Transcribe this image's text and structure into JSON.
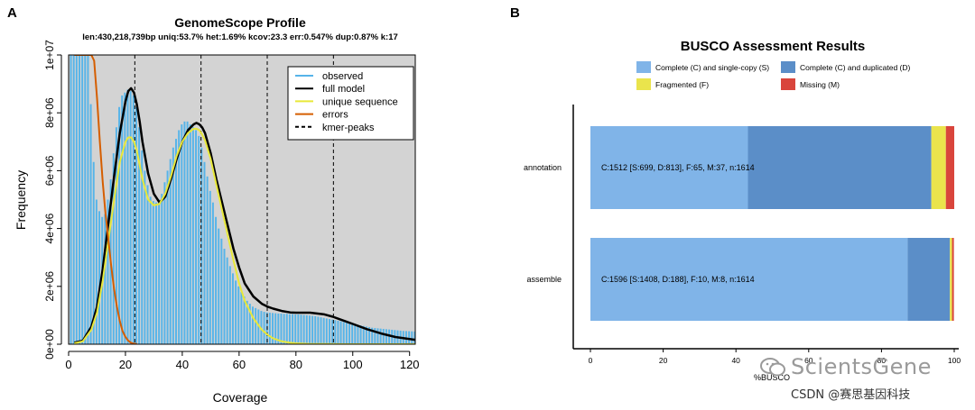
{
  "panels": {
    "a_letter": "A",
    "b_letter": "B"
  },
  "chart_data": [
    {
      "type": "line",
      "title": "GenomeScope Profile",
      "subtitle": "len:430,218,739bp uniq:53.7% het:1.69% kcov:23.3 err:0.547% dup:0.87% k:17",
      "xlabel": "Coverage",
      "ylabel": "Frequency",
      "xlim": [
        0,
        122
      ],
      "ylim": [
        0,
        10000000
      ],
      "x_ticks": [
        0,
        20,
        40,
        60,
        80,
        100,
        120
      ],
      "y_tick_values": [
        0,
        2000000,
        4000000,
        6000000,
        8000000,
        10000000
      ],
      "y_ticks": [
        "0e+00",
        "2e+06",
        "4e+06",
        "6e+06",
        "8e+06",
        "1e+07"
      ],
      "legend_position": "top-right",
      "background": "#d3d3d3",
      "kmer_peaks": [
        23.3,
        46.6,
        69.9,
        93.2
      ],
      "series": [
        {
          "name": "observed",
          "color": "#56b4e9",
          "style": "bars",
          "x": [
            1,
            2,
            3,
            4,
            5,
            6,
            7,
            8,
            9,
            10,
            11,
            12,
            13,
            14,
            15,
            16,
            17,
            18,
            19,
            20,
            21,
            22,
            23,
            24,
            25,
            26,
            27,
            28,
            29,
            30,
            31,
            32,
            33,
            34,
            35,
            36,
            37,
            38,
            39,
            40,
            41,
            42,
            43,
            44,
            45,
            46,
            47,
            48,
            49,
            50,
            51,
            52,
            53,
            54,
            55,
            56,
            57,
            58,
            59,
            60,
            61,
            62,
            63,
            64,
            65,
            66,
            67,
            68,
            69,
            70,
            71,
            72,
            73,
            74,
            75,
            76,
            77,
            78,
            79,
            80,
            81,
            82,
            83,
            84,
            85,
            86,
            87,
            88,
            89,
            90,
            91,
            92,
            93,
            94,
            95,
            96,
            97,
            98,
            99,
            100,
            101,
            102,
            103,
            104,
            105,
            106,
            107,
            108,
            109,
            110,
            111,
            112,
            113,
            114,
            115,
            116,
            117,
            118,
            119,
            120,
            121,
            122
          ],
          "values": [
            10000000,
            10000000,
            10000000,
            10000000,
            10000000,
            10000000,
            10000000,
            8300000,
            6300000,
            5000000,
            4600000,
            4400000,
            4500000,
            5000000,
            5700000,
            6600000,
            7500000,
            8200000,
            8600000,
            8700000,
            8800000,
            8750000,
            8600000,
            8200000,
            7500000,
            6700000,
            6000000,
            5500000,
            5100000,
            4950000,
            4900000,
            5000000,
            5200000,
            5600000,
            6000000,
            6400000,
            6800000,
            7100000,
            7400000,
            7600000,
            7700000,
            7700000,
            7600000,
            7500000,
            7400000,
            7200000,
            6800000,
            6300000,
            5800000,
            5300000,
            4900000,
            4400000,
            4000000,
            3650000,
            3300000,
            3000000,
            2700000,
            2450000,
            2200000,
            2000000,
            1800000,
            1650000,
            1500000,
            1400000,
            1300000,
            1250000,
            1200000,
            1150000,
            1120000,
            1100000,
            1090000,
            1080000,
            1070000,
            1060000,
            1060000,
            1050000,
            1050000,
            1040000,
            1040000,
            1030000,
            1030000,
            1020000,
            1010000,
            1000000,
            990000,
            980000,
            970000,
            950000,
            930000,
            910000,
            890000,
            870000,
            850000,
            830000,
            810000,
            790000,
            770000,
            750000,
            730000,
            710000,
            690000,
            670000,
            650000,
            630000,
            610000,
            590000,
            570000,
            560000,
            550000,
            540000,
            530000,
            520000,
            510000,
            500000,
            490000,
            480000,
            470000,
            460000,
            455000,
            450000,
            445000,
            440000
          ]
        },
        {
          "name": "full model",
          "color": "#000000",
          "x": [
            2,
            5,
            8,
            10,
            12,
            14,
            16,
            18,
            20,
            21,
            22,
            23,
            24,
            25,
            26,
            28,
            30,
            32,
            34,
            36,
            38,
            40,
            42,
            44,
            45,
            46,
            47,
            48,
            50,
            52,
            55,
            58,
            60,
            62,
            65,
            68,
            70,
            72,
            75,
            78,
            80,
            85,
            90,
            93,
            95,
            100,
            105,
            110,
            115,
            120,
            122
          ],
          "values": [
            50000,
            120000,
            600000,
            1300000,
            2600000,
            4200000,
            5800000,
            7300000,
            8400000,
            8750000,
            8850000,
            8700000,
            8300000,
            7700000,
            7000000,
            5900000,
            5200000,
            4900000,
            5100000,
            5700000,
            6400000,
            7000000,
            7400000,
            7600000,
            7650000,
            7600000,
            7500000,
            7300000,
            6600000,
            5700000,
            4500000,
            3300000,
            2650000,
            2100000,
            1650000,
            1400000,
            1300000,
            1230000,
            1150000,
            1100000,
            1090000,
            1090000,
            1030000,
            950000,
            880000,
            700000,
            520000,
            370000,
            250000,
            180000,
            150000
          ]
        },
        {
          "name": "unique sequence",
          "color": "#e8e839",
          "x": [
            2,
            5,
            8,
            10,
            12,
            14,
            16,
            18,
            20,
            21,
            22,
            23,
            24,
            25,
            26,
            28,
            30,
            32,
            34,
            36,
            38,
            40,
            42,
            44,
            45,
            46,
            47,
            48,
            50,
            52,
            55,
            58,
            60,
            62,
            65,
            68,
            70,
            72,
            75,
            78,
            80,
            85,
            90,
            100,
            110,
            122
          ],
          "values": [
            30000,
            100000,
            500000,
            1100000,
            2200000,
            3600000,
            5000000,
            6300000,
            7000000,
            7150000,
            7150000,
            7000000,
            6700000,
            6200000,
            5700000,
            5000000,
            4800000,
            4850000,
            5200000,
            5800000,
            6500000,
            7000000,
            7300000,
            7450000,
            7450000,
            7400000,
            7250000,
            7050000,
            6400000,
            5500000,
            4200000,
            2900000,
            2100000,
            1500000,
            900000,
            500000,
            330000,
            200000,
            100000,
            50000,
            30000,
            10000,
            5000,
            1000,
            500,
            300
          ]
        },
        {
          "name": "errors",
          "color": "#d55e00",
          "x": [
            2,
            3,
            4,
            5,
            6,
            7,
            8,
            9,
            10,
            11,
            12,
            13,
            14,
            15,
            16,
            17,
            18,
            19,
            20,
            21,
            22,
            23,
            24
          ],
          "values": [
            10000000,
            10000000,
            10000000,
            10000000,
            10000000,
            10000000,
            10000000,
            9800000,
            8500000,
            7000000,
            5600000,
            4500000,
            3600000,
            2700000,
            1900000,
            1300000,
            800000,
            450000,
            250000,
            120000,
            50000,
            20000,
            8000
          ]
        },
        {
          "name": "kmer-peaks",
          "color": "#000000",
          "style": "dashed"
        }
      ]
    },
    {
      "type": "bar",
      "orientation": "horizontal",
      "stacked": true,
      "title": "BUSCO Assessment Results",
      "xlabel": "%BUSCO",
      "xlim": [
        0,
        100
      ],
      "x_ticks": [
        0,
        20,
        40,
        60,
        80,
        100
      ],
      "legend_position": "top",
      "categories": [
        "annotation",
        "assemble"
      ],
      "series": [
        {
          "name": "Complete (C) and single-copy (S)",
          "color": "#80b4e8",
          "values": [
            43.3,
            87.2
          ]
        },
        {
          "name": "Complete (C) and duplicated (D)",
          "color": "#5b8ec8",
          "values": [
            50.4,
            11.6
          ]
        },
        {
          "name": "Fragmented (F)",
          "color": "#eae44c",
          "values": [
            4.0,
            0.6
          ]
        },
        {
          "name": "Missing (M)",
          "color": "#d9453c",
          "values": [
            2.3,
            0.5
          ]
        }
      ],
      "bar_labels": [
        "C:1512 [S:699, D:813], F:65, M:37, n:1614",
        "C:1596 [S:1408, D:188], F:10, M:8, n:1614"
      ]
    }
  ],
  "watermark": {
    "brand": "ScientsGene",
    "credit": "CSDN @赛思基因科技"
  }
}
